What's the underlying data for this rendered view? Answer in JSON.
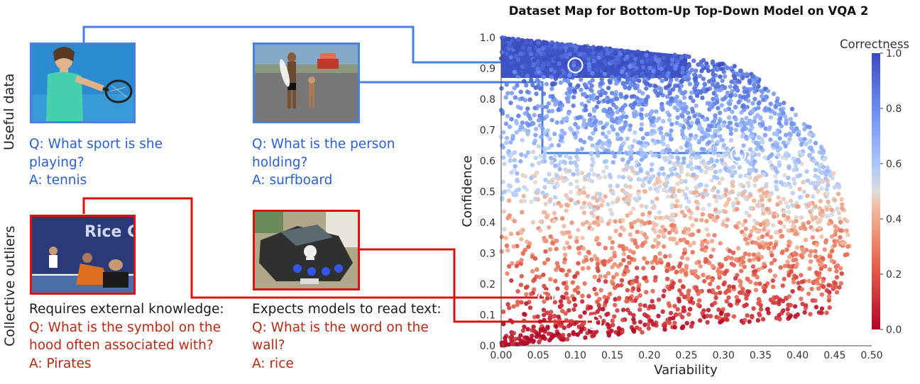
{
  "figure": {
    "row_labels": {
      "useful": "Useful data",
      "outliers": "Collective outliers"
    },
    "examples": [
      {
        "id": "tennis",
        "group": "useful",
        "question": "Q: What sport is she playing?",
        "answer": "A: tennis",
        "variability": 0.1,
        "confidence": 0.91
      },
      {
        "id": "surfboard",
        "group": "useful",
        "question": "Q: What is the person holding?",
        "answer": "A: surfboard",
        "variability": 0.32,
        "confidence": 0.62
      },
      {
        "id": "pirates",
        "group": "outlier",
        "note": "Requires external knowledge:",
        "question": "Q: What is the symbol on the hood often associated with?",
        "answer": "A: Pirates",
        "variability": 0.06,
        "confidence": 0.155
      },
      {
        "id": "rice",
        "group": "outlier",
        "note": "Expects models to read text:",
        "question": "Q: What is the word on the wall?",
        "answer": "A: rice",
        "variability": 0.125,
        "confidence": 0.075
      }
    ],
    "image_text": {
      "rice_sign": "Rice C"
    },
    "colors": {
      "useful": "#4a80e0",
      "outlier": "#e01010",
      "high": "#3a4fc4",
      "low": "#b8102e"
    }
  },
  "chart_data": {
    "type": "scatter",
    "title": "Dataset Map for Bottom-Up Top-Down Model on VQA 2",
    "xlabel": "Variability",
    "ylabel": "Confidence",
    "xlim": [
      0.0,
      0.5
    ],
    "ylim": [
      0.0,
      1.0
    ],
    "xticks": [
      "0.00",
      "0.05",
      "0.10",
      "0.15",
      "0.20",
      "0.25",
      "0.30",
      "0.35",
      "0.40",
      "0.45",
      "0.50"
    ],
    "yticks": [
      "0.0",
      "0.1",
      "0.2",
      "0.3",
      "0.4",
      "0.5",
      "0.6",
      "0.7",
      "0.8",
      "0.9",
      "1.0"
    ],
    "colorbar": {
      "label": "Correctness",
      "ticks": [
        "0.0",
        "0.2",
        "0.4",
        "0.6",
        "0.8",
        "1.0"
      ],
      "colormap": "coolwarm (red=0, blue=1)"
    },
    "grid": false,
    "distribution": {
      "envelope_upper_variability": [
        [
          1.0,
          0.0
        ],
        [
          0.94,
          0.25
        ],
        [
          0.9,
          0.33
        ],
        [
          0.8,
          0.38
        ],
        [
          0.7,
          0.42
        ],
        [
          0.6,
          0.445
        ],
        [
          0.5,
          0.46
        ],
        [
          0.4,
          0.47
        ],
        [
          0.3,
          0.47
        ],
        [
          0.2,
          0.46
        ],
        [
          0.1,
          0.44
        ],
        [
          0.0,
          0.0
        ]
      ],
      "note": "Points fill the region under the envelope; color correlates with confidence."
    }
  }
}
